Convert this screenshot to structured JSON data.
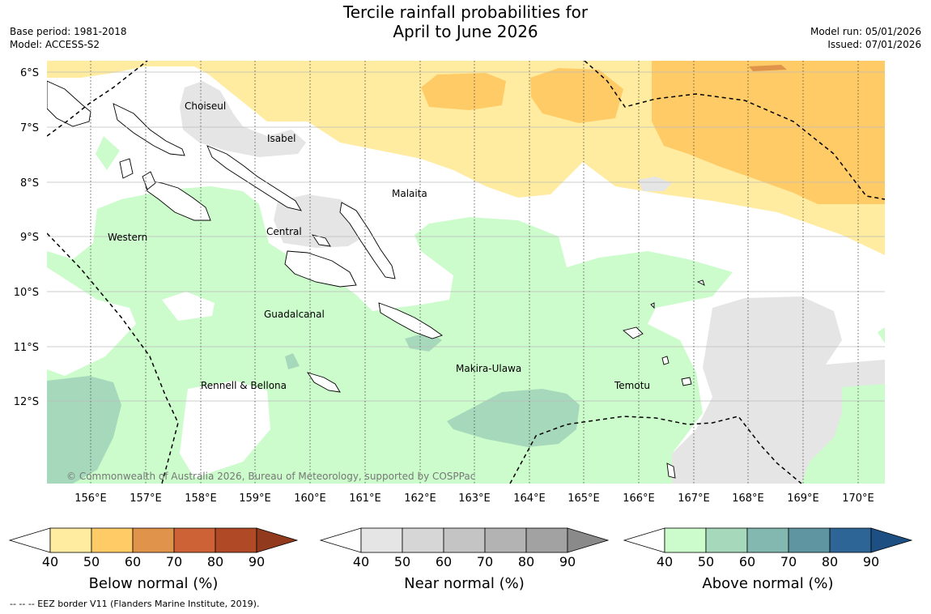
{
  "title_line1": "Tercile rainfall probabilities for",
  "title_line2": "April to June 2026",
  "base_period": "Base period: 1981-2018",
  "model": "Model: ACCESS-S2",
  "model_run": "Model run: 05/01/2026",
  "issued": "Issued: 07/01/2026",
  "copyright": "© Commonwealth of Australia 2026, Bureau of Meteorology, supported by COSPPac",
  "lat_labels": [
    "6°S",
    "7°S",
    "8°S",
    "9°S",
    "10°S",
    "11°S",
    "12°S"
  ],
  "lon_labels": [
    "156°E",
    "157°E",
    "158°E",
    "159°E",
    "160°E",
    "161°E",
    "162°E",
    "163°E",
    "164°E",
    "165°E",
    "166°E",
    "167°E",
    "168°E",
    "169°E",
    "170°E"
  ],
  "provinces": {
    "choiseul": "Choiseul",
    "isabel": "Isabel",
    "malaita": "Malaita",
    "western": "Western",
    "central": "Central",
    "guadalcanal": "Guadalcanal",
    "makira": "Makira-Ulawa",
    "rennell": "Rennell & Bellona",
    "temotu": "Temotu"
  },
  "colorbars": [
    {
      "label": "Below normal (%)",
      "ticks": [
        "40",
        "50",
        "60",
        "70",
        "80",
        "90"
      ],
      "colors": [
        "#ffffff",
        "#ffeca0",
        "#ffcb66",
        "#e0934a",
        "#cc6236",
        "#b04925",
        "#923a1e"
      ]
    },
    {
      "label": "Near normal (%)",
      "ticks": [
        "40",
        "50",
        "60",
        "70",
        "80",
        "90"
      ],
      "colors": [
        "#ffffff",
        "#e5e5e5",
        "#d6d6d6",
        "#c4c4c4",
        "#b3b3b3",
        "#a2a2a2",
        "#8a8a8a"
      ]
    },
    {
      "label": "Above normal (%)",
      "ticks": [
        "40",
        "50",
        "60",
        "70",
        "80",
        "90"
      ],
      "colors": [
        "#ffffff",
        "#ccfccb",
        "#a6d9bb",
        "#83b8b0",
        "#5e95a0",
        "#2e6597",
        "#1d4f83"
      ]
    }
  ],
  "eez_note": "--  --  -- EEZ border V11 (Flanders Marine Institute, 2019)."
}
